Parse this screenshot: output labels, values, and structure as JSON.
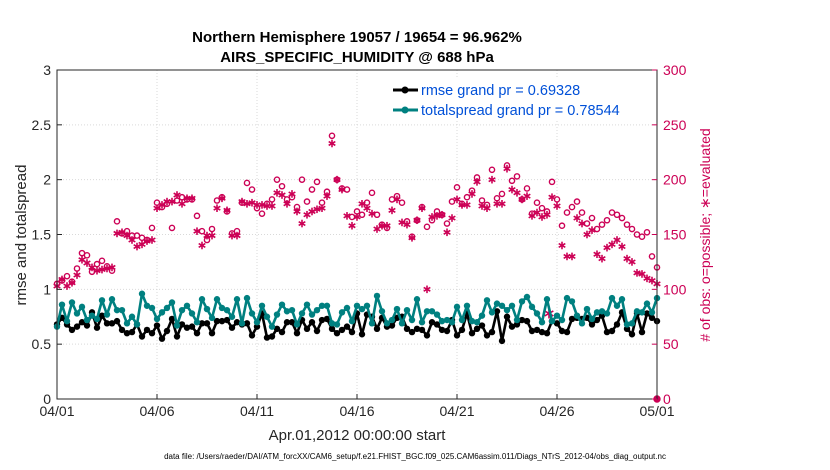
{
  "chart_data": {
    "type": "line",
    "title": "Northern Hemisphere 19057 / 19654 = 96.962%",
    "subtitle": "AIRS_SPECIFIC_HUMIDITY @ 688 hPa",
    "xlabel": "Apr.01,2012 00:00:00 start",
    "ylabel": "rmse and totalspread",
    "ylabel_right": "# of obs: o=possible; ∗=evaluated",
    "xticks": [
      "04/01",
      "04/06",
      "04/11",
      "04/16",
      "04/21",
      "04/26",
      "05/01"
    ],
    "yticks": [
      "0",
      "0.5",
      "1",
      "1.5",
      "2",
      "2.5",
      "3"
    ],
    "yticks_right": [
      "0",
      "50",
      "100",
      "150",
      "200",
      "250",
      "300"
    ],
    "ylim": [
      0,
      3
    ],
    "ylim_right": [
      0,
      300
    ],
    "xlim_days": [
      0,
      30
    ],
    "step_days": 0.25,
    "grid": true,
    "legend_position": "top-right",
    "colors": {
      "rmse": "#000000",
      "totalspread": "#008080",
      "obs": "#cc0055",
      "legend_text": "#0050d8"
    },
    "series": [
      {
        "name": "rmse",
        "label": "rmse grand pr = 0.69328",
        "axis": "left",
        "values": [
          0.68,
          0.74,
          0.68,
          0.63,
          0.66,
          0.7,
          0.67,
          0.79,
          0.65,
          0.76,
          0.69,
          0.69,
          0.71,
          0.63,
          0.6,
          0.61,
          0.68,
          0.57,
          0.63,
          0.6,
          0.67,
          0.55,
          0.62,
          0.73,
          0.57,
          0.68,
          0.65,
          0.66,
          0.6,
          0.69,
          0.69,
          0.6,
          0.71,
          0.71,
          0.72,
          0.65,
          0.7,
          0.68,
          0.69,
          0.58,
          0.66,
          0.78,
          0.56,
          0.57,
          0.64,
          0.61,
          0.7,
          0.7,
          0.6,
          0.72,
          0.64,
          0.7,
          0.62,
          0.72,
          0.73,
          0.64,
          0.6,
          0.63,
          0.66,
          0.61,
          0.78,
          0.59,
          0.77,
          0.75,
          0.64,
          0.74,
          0.66,
          0.67,
          0.74,
          0.75,
          0.64,
          0.61,
          0.64,
          0.63,
          0.58,
          0.7,
          0.68,
          0.63,
          0.62,
          0.72,
          0.58,
          0.63,
          0.78,
          0.6,
          0.64,
          0.67,
          0.58,
          0.61,
          0.8,
          0.53,
          0.75,
          0.66,
          0.68,
          0.72,
          0.71,
          0.62,
          0.63,
          0.61,
          0.6,
          0.71,
          0.69,
          0.62,
          0.61,
          0.73,
          0.74,
          0.73,
          0.74,
          0.68,
          0.72,
          0.76,
          0.61,
          0.62,
          0.68,
          0.79,
          0.64,
          0.59,
          0.78,
          0.61,
          0.78,
          0.74,
          0.71
        ]
      },
      {
        "name": "totalspread",
        "label": "totalspread grand pr = 0.78544",
        "axis": "left",
        "values": [
          0.66,
          0.86,
          0.71,
          0.88,
          0.78,
          0.84,
          0.72,
          0.76,
          0.73,
          0.9,
          0.77,
          0.91,
          0.81,
          0.81,
          0.69,
          0.75,
          0.68,
          0.96,
          0.85,
          0.83,
          0.73,
          0.79,
          0.83,
          0.88,
          0.67,
          0.81,
          0.85,
          0.78,
          0.7,
          0.91,
          0.82,
          0.74,
          0.91,
          0.83,
          0.81,
          0.75,
          0.91,
          0.69,
          0.92,
          0.78,
          0.7,
          0.85,
          0.75,
          0.66,
          0.77,
          0.86,
          0.8,
          0.81,
          0.68,
          0.78,
          0.86,
          0.77,
          0.81,
          0.85,
          0.85,
          0.69,
          0.68,
          0.79,
          0.83,
          0.71,
          0.85,
          0.82,
          0.85,
          0.69,
          0.94,
          0.8,
          0.69,
          0.72,
          0.82,
          0.69,
          0.81,
          0.72,
          0.91,
          0.7,
          0.8,
          0.8,
          0.77,
          0.71,
          0.72,
          0.7,
          0.84,
          0.72,
          0.85,
          0.71,
          0.7,
          0.76,
          0.9,
          0.79,
          0.87,
          0.85,
          0.81,
          0.85,
          0.72,
          0.89,
          0.93,
          0.84,
          0.78,
          0.7,
          0.91,
          0.71,
          0.76,
          0.72,
          0.92,
          0.89,
          0.76,
          0.69,
          0.82,
          0.73,
          0.79,
          0.8,
          0.78,
          0.92,
          0.85,
          0.91,
          0.68,
          0.69,
          0.8,
          0.79,
          0.87,
          0.79,
          0.92
        ]
      },
      {
        "name": "obs_possible",
        "label": "o = possible",
        "axis": "right",
        "values": [
          105,
          108,
          112,
          107,
          119,
          133,
          131,
          116,
          123,
          126,
          121,
          117,
          162,
          151,
          153,
          149,
          149,
          147,
          145,
          156,
          179,
          175,
          178,
          156,
          181,
          184,
          182,
          182,
          167,
          153,
          145,
          155,
          181,
          184,
          171,
          151,
          153,
          179,
          197,
          191,
          174,
          169,
          178,
          182,
          200,
          194,
          182,
          184,
          175,
          200,
          180,
          191,
          198,
          179,
          189,
          240,
          200,
          192,
          191,
          166,
          171,
          168,
          179,
          188,
          168,
          159,
          156,
          182,
          185,
          179,
          162,
          148,
          163,
          175,
          157,
          163,
          171,
          168,
          160,
          180,
          193,
          178,
          184,
          190,
          202,
          181,
          177,
          209,
          183,
          187,
          213,
          199,
          203,
          182,
          192,
          169,
          179,
          174,
          171,
          198,
          182,
          158,
          170,
          175,
          180,
          170,
          160,
          165,
          155,
          159,
          163,
          170,
          168,
          165,
          159,
          155,
          150,
          148,
          152,
          130,
          120
        ]
      },
      {
        "name": "obs_evaluated",
        "label": "∗ = evaluated",
        "axis": "right",
        "values": [
          103,
          109,
          103,
          106,
          113,
          127,
          124,
          120,
          117,
          118,
          119,
          120,
          151,
          152,
          149,
          145,
          139,
          141,
          144,
          145,
          174,
          177,
          180,
          180,
          186,
          178,
          183,
          183,
          153,
          140,
          149,
          149,
          174,
          183,
          172,
          149,
          149,
          180,
          178,
          179,
          177,
          177,
          176,
          176,
          188,
          186,
          178,
          187,
          171,
          160,
          168,
          171,
          173,
          174,
          185,
          233,
          200,
          191,
          167,
          158,
          166,
          178,
          174,
          169,
          155,
          158,
          158,
          172,
          182,
          161,
          159,
          147,
          163,
          174,
          100,
          166,
          167,
          168,
          152,
          165,
          182,
          177,
          177,
          187,
          198,
          176,
          174,
          200,
          178,
          178,
          210,
          191,
          188,
          182,
          185,
          167,
          170,
          166,
          168,
          184,
          176,
          140,
          130,
          130,
          165,
          160,
          150,
          154,
          132,
          128,
          138,
          141,
          145,
          139,
          128,
          125,
          115,
          114,
          110,
          108,
          105
        ]
      },
      {
        "name": "obs_markers_near_zero_right",
        "label": "",
        "axis": "right",
        "points": [
          [
            30,
            0
          ]
        ]
      }
    ],
    "extra_markers": [
      {
        "day": 24.6,
        "value_left": 0.78,
        "color": "#cc0055",
        "shape": "star"
      }
    ]
  },
  "footer": "data file: /Users/raeder/DAI/ATM_forcXX/CAM6_setup/f.e21.FHIST_BGC.f09_025.CAM6assim.011/Diags_NTrS_2012-04/obs_diag_output.nc"
}
